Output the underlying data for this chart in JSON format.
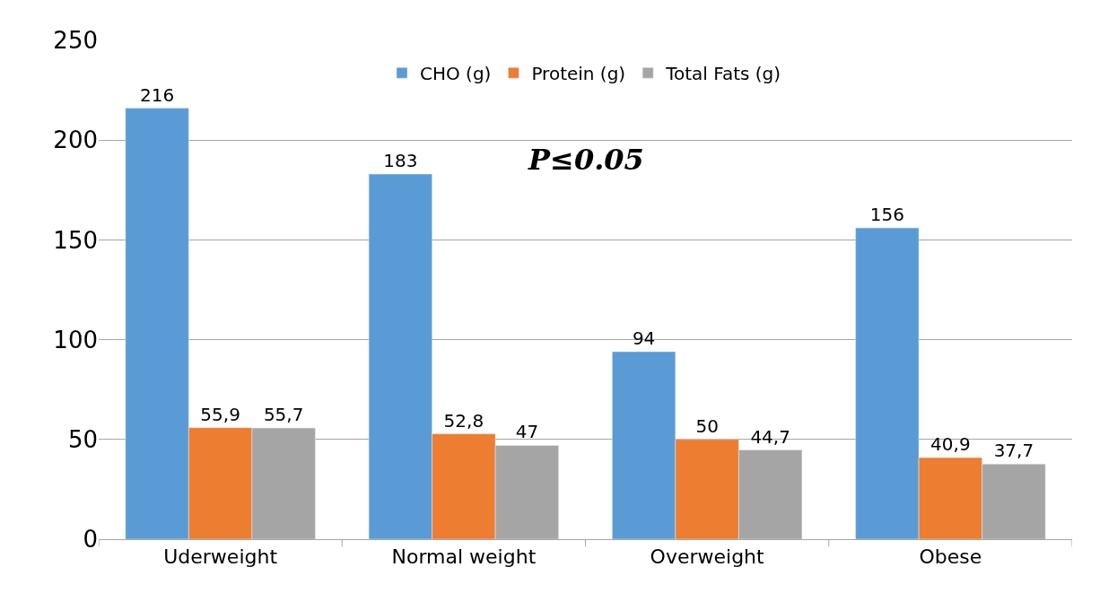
{
  "chart_data": {
    "type": "bar",
    "categories": [
      "Uderweight",
      "Normal weight",
      "Overweight",
      "Obese"
    ],
    "series": [
      {
        "name": "CHO (g)",
        "color": "#5b9bd5",
        "values": [
          216,
          183,
          94,
          156
        ],
        "value_labels": [
          "216",
          "183",
          "94",
          "156"
        ]
      },
      {
        "name": "Protein (g)",
        "color": "#ed7d31",
        "values": [
          55.9,
          52.8,
          50,
          40.9
        ],
        "value_labels": [
          "55,9",
          "52,8",
          "50",
          "40,9"
        ]
      },
      {
        "name": "Total Fats (g)",
        "color": "#a5a5a5",
        "values": [
          55.7,
          47,
          44.7,
          37.7
        ],
        "value_labels": [
          "55,7",
          "47",
          "44,7",
          "37,7"
        ]
      }
    ],
    "ylim": [
      0,
      250
    ],
    "yticks": [
      0,
      50,
      100,
      150,
      200,
      250
    ],
    "grid": "y",
    "legend": "top",
    "annotations": [
      "P≤0.05"
    ]
  }
}
